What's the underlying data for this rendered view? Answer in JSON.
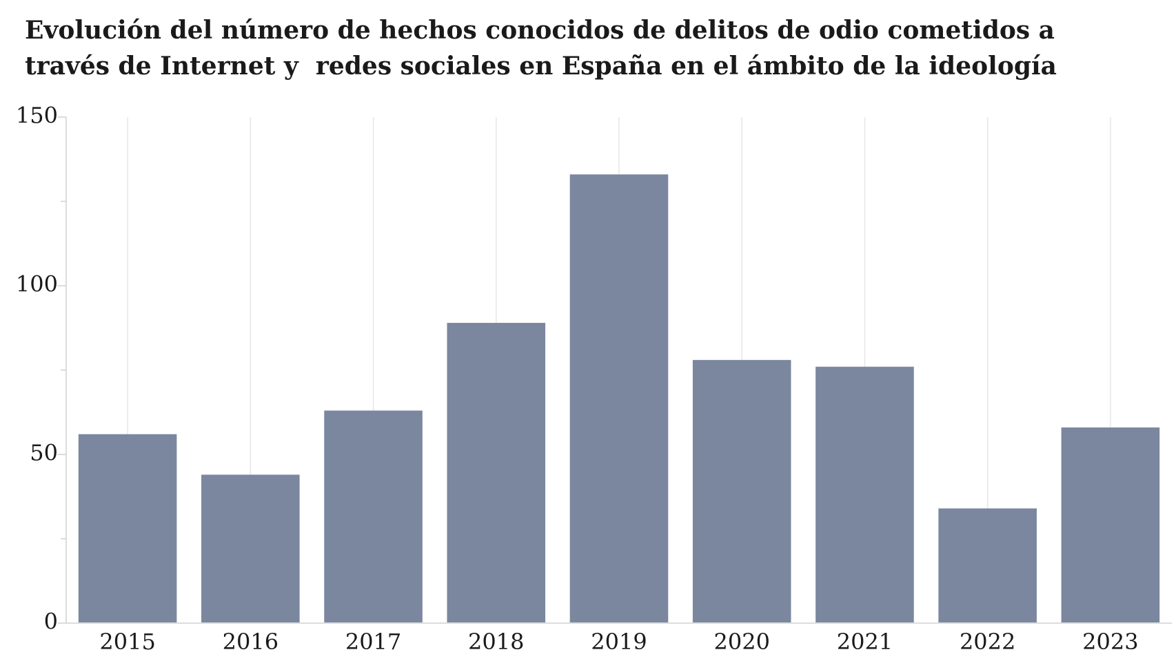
{
  "chart_data": {
    "type": "bar",
    "title": [
      "Evolución del número de hechos conocidos de delitos de odio cometidos a",
      "través de Internet y  redes sociales en España en el ámbito de la ideología"
    ],
    "xlabel": "",
    "ylabel": "",
    "categories": [
      "2015",
      "2016",
      "2017",
      "2018",
      "2019",
      "2020",
      "2021",
      "2022",
      "2023"
    ],
    "values": [
      56,
      44,
      63,
      89,
      133,
      78,
      76,
      34,
      58
    ],
    "ylim": [
      0,
      150
    ],
    "yticks": [
      0,
      50,
      100,
      150
    ],
    "grid": true,
    "bar_color": "#7b879f",
    "grid_color": "#e6e6e6"
  }
}
